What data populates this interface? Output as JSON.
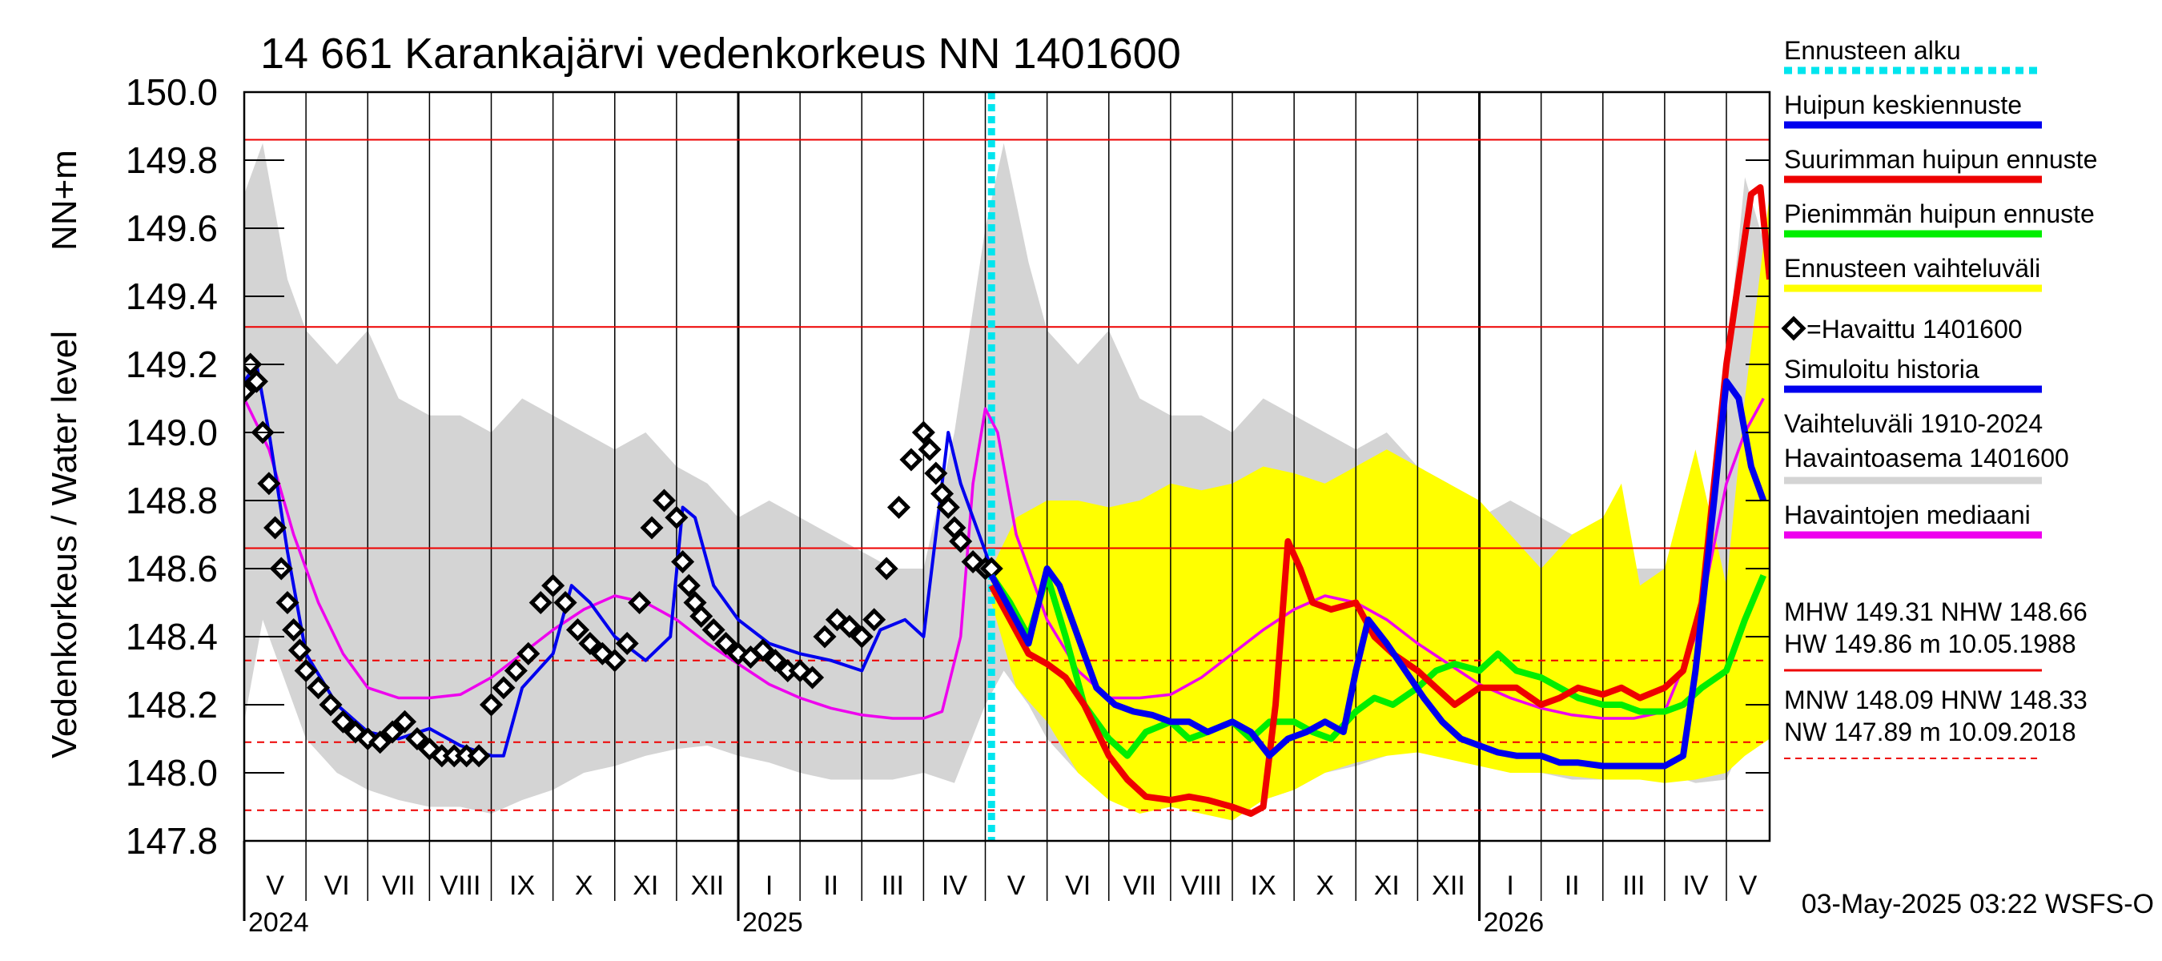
{
  "chart_data": {
    "type": "line",
    "title": "14 661 Karankajärvi vedenkorkeus NN 1401600",
    "ylabel": "Vedenkorkeus / Water level",
    "ylabel_unit": "NN+m",
    "ylim": [
      147.8,
      150.0
    ],
    "yticks": [
      "147.8",
      "148.0",
      "148.2",
      "148.4",
      "148.6",
      "148.8",
      "149.0",
      "149.2",
      "149.4",
      "149.6",
      "149.8",
      "150.0"
    ],
    "x_range": [
      0,
      24.7
    ],
    "months": [
      {
        "label": "V",
        "start": 0
      },
      {
        "label": "VI",
        "start": 1
      },
      {
        "label": "VII",
        "start": 2
      },
      {
        "label": "VIII",
        "start": 3
      },
      {
        "label": "IX",
        "start": 4
      },
      {
        "label": "X",
        "start": 5
      },
      {
        "label": "XI",
        "start": 6
      },
      {
        "label": "XII",
        "start": 7
      },
      {
        "label": "I",
        "start": 8
      },
      {
        "label": "II",
        "start": 9
      },
      {
        "label": "III",
        "start": 10
      },
      {
        "label": "IV",
        "start": 11
      },
      {
        "label": "V",
        "start": 12
      },
      {
        "label": "VI",
        "start": 13
      },
      {
        "label": "VII",
        "start": 14
      },
      {
        "label": "VIII",
        "start": 15
      },
      {
        "label": "IX",
        "start": 16
      },
      {
        "label": "X",
        "start": 17
      },
      {
        "label": "XI",
        "start": 18
      },
      {
        "label": "XII",
        "start": 19
      },
      {
        "label": "I",
        "start": 20
      },
      {
        "label": "II",
        "start": 21
      },
      {
        "label": "III",
        "start": 22
      },
      {
        "label": "IV",
        "start": 23
      },
      {
        "label": "V",
        "start": 24
      }
    ],
    "years": [
      {
        "label": "2024",
        "month_index": 0
      },
      {
        "label": "2025",
        "month_index": 8
      },
      {
        "label": "2026",
        "month_index": 20
      }
    ],
    "forecast_start": 12.1,
    "reference_lines": [
      {
        "name": "HW",
        "value": 149.86,
        "style": "solid"
      },
      {
        "name": "MHW",
        "value": 149.31,
        "style": "solid"
      },
      {
        "name": "NHW",
        "value": 148.66,
        "style": "solid"
      },
      {
        "name": "HNW",
        "value": 148.33,
        "style": "dashed"
      },
      {
        "name": "MNW",
        "value": 148.09,
        "style": "dashed"
      },
      {
        "name": "NW",
        "value": 147.89,
        "style": "dashed"
      }
    ],
    "series": [
      {
        "name": "Vaihteluväli 1910-2024 Havaintoasema 1401600",
        "kind": "band",
        "x": [
          0,
          0.3,
          0.7,
          1,
          1.5,
          2,
          2.5,
          3,
          3.5,
          4,
          4.5,
          5,
          5.5,
          6,
          6.5,
          7,
          7.5,
          8,
          8.5,
          9,
          9.5,
          10,
          10.5,
          11,
          11.5,
          12,
          12.3,
          12.7,
          13,
          13.5,
          14,
          14.5,
          15,
          15.5,
          16,
          16.5,
          17,
          17.5,
          18,
          18.5,
          19,
          19.5,
          20,
          20.5,
          21,
          21.5,
          22,
          22.5,
          23,
          23.5,
          24,
          24.3,
          24.7
        ],
        "upper": [
          149.7,
          149.85,
          149.45,
          149.3,
          149.2,
          149.3,
          149.1,
          149.05,
          149.05,
          149.0,
          149.1,
          149.05,
          149.0,
          148.95,
          149.0,
          148.9,
          148.85,
          148.75,
          148.8,
          148.75,
          148.7,
          148.65,
          148.6,
          148.6,
          149.0,
          149.6,
          149.85,
          149.5,
          149.3,
          149.2,
          149.3,
          149.1,
          149.05,
          149.05,
          149.0,
          149.1,
          149.05,
          149.0,
          148.95,
          149.0,
          148.9,
          148.85,
          148.75,
          148.8,
          148.75,
          148.7,
          148.65,
          148.6,
          148.6,
          148.45,
          149.2,
          149.75,
          149.5
        ],
        "lower": [
          148.15,
          148.45,
          148.25,
          148.1,
          148.0,
          147.95,
          147.92,
          147.9,
          147.9,
          147.88,
          147.92,
          147.95,
          148.0,
          148.02,
          148.05,
          148.07,
          148.08,
          148.05,
          148.03,
          148.0,
          147.98,
          147.98,
          147.98,
          148.0,
          147.97,
          148.2,
          148.3,
          148.2,
          148.1,
          148.0,
          147.95,
          147.92,
          147.9,
          147.9,
          147.88,
          147.92,
          147.95,
          148.0,
          148.02,
          148.05,
          148.07,
          148.08,
          148.05,
          148.03,
          148.0,
          147.98,
          147.98,
          147.98,
          148.0,
          147.97,
          147.98,
          148.1,
          148.15
        ],
        "color": "#d4d4d4"
      },
      {
        "name": "Ennusteen vaihteluväli",
        "kind": "band",
        "x": [
          12.1,
          12.5,
          13,
          13.5,
          14,
          14.5,
          15,
          15.5,
          16,
          16.5,
          17,
          17.5,
          18,
          18.5,
          19,
          19.5,
          20,
          20.5,
          21,
          21.5,
          22,
          22.3,
          22.6,
          23,
          23.5,
          24,
          24.3,
          24.7
        ],
        "upper": [
          148.6,
          148.75,
          148.8,
          148.8,
          148.78,
          148.8,
          148.85,
          148.83,
          148.85,
          148.9,
          148.88,
          148.85,
          148.9,
          148.95,
          148.9,
          148.85,
          148.8,
          148.7,
          148.6,
          148.7,
          148.75,
          148.85,
          148.55,
          148.6,
          148.95,
          148.55,
          149.1,
          149.7
        ],
        "lower": [
          148.5,
          148.25,
          148.15,
          148.0,
          147.92,
          147.88,
          147.9,
          147.88,
          147.86,
          147.92,
          147.95,
          148.0,
          148.03,
          148.05,
          148.06,
          148.04,
          148.02,
          148.0,
          148.0,
          147.99,
          147.98,
          147.98,
          147.98,
          147.97,
          147.98,
          148.0,
          148.05,
          148.1
        ],
        "color": "#ffff00"
      },
      {
        "name": "Havaintojen mediaani",
        "kind": "line",
        "x": [
          0,
          0.4,
          0.8,
          1.2,
          1.6,
          2,
          2.5,
          3,
          3.5,
          4,
          4.5,
          5,
          5.5,
          6,
          6.5,
          7,
          7.5,
          8,
          8.5,
          9,
          9.5,
          10,
          10.5,
          11,
          11.3,
          11.6,
          11.8,
          12,
          12.2,
          12.5,
          13,
          13.5,
          14,
          14.5,
          15,
          15.5,
          16,
          16.5,
          17,
          17.5,
          18,
          18.5,
          19,
          19.5,
          20,
          20.5,
          21,
          21.5,
          22,
          22.5,
          23,
          23.5,
          24,
          24.3,
          24.6
        ],
        "values": [
          149.1,
          148.95,
          148.7,
          148.5,
          148.35,
          148.25,
          148.22,
          148.22,
          148.23,
          148.28,
          148.35,
          148.42,
          148.48,
          148.52,
          148.5,
          148.45,
          148.38,
          148.32,
          148.26,
          148.22,
          148.19,
          148.17,
          148.16,
          148.16,
          148.18,
          148.4,
          148.85,
          149.07,
          149.0,
          148.7,
          148.45,
          148.3,
          148.22,
          148.22,
          148.23,
          148.28,
          148.35,
          148.42,
          148.48,
          148.52,
          148.5,
          148.45,
          148.38,
          148.32,
          148.26,
          148.22,
          148.19,
          148.17,
          148.16,
          148.16,
          148.18,
          148.4,
          148.85,
          149.0,
          149.1
        ],
        "color": "#ee00ee"
      },
      {
        "name": "Simuloitu historia",
        "kind": "line",
        "x": [
          0,
          0.2,
          0.4,
          0.7,
          1,
          1.5,
          2,
          2.5,
          3,
          3.5,
          4,
          4.2,
          4.5,
          5,
          5.3,
          5.6,
          6,
          6.5,
          6.9,
          7.1,
          7.3,
          7.6,
          8,
          8.5,
          9,
          9.5,
          10,
          10.3,
          10.7,
          11,
          11.2,
          11.4,
          11.6,
          12,
          12.1
        ],
        "values": [
          149.15,
          149.2,
          149.0,
          148.65,
          148.35,
          148.2,
          148.12,
          148.1,
          148.13,
          148.08,
          148.05,
          148.05,
          148.25,
          148.35,
          148.55,
          148.5,
          148.4,
          148.33,
          148.4,
          148.78,
          148.75,
          148.55,
          148.45,
          148.38,
          148.35,
          148.33,
          148.3,
          148.42,
          148.45,
          148.4,
          148.7,
          149.0,
          148.85,
          148.65,
          148.6
        ],
        "color": "#0000ee"
      },
      {
        "name": "Havaittu 1401600",
        "kind": "markers",
        "x": [
          0,
          0.1,
          0.2,
          0.3,
          0.4,
          0.5,
          0.6,
          0.7,
          0.8,
          0.9,
          1.0,
          1.2,
          1.4,
          1.6,
          1.8,
          2.0,
          2.2,
          2.4,
          2.6,
          2.8,
          3.0,
          3.2,
          3.4,
          3.6,
          3.8,
          4.0,
          4.2,
          4.4,
          4.6,
          4.8,
          5.0,
          5.2,
          5.4,
          5.6,
          5.8,
          6.0,
          6.2,
          6.4,
          6.6,
          6.8,
          7.0,
          7.1,
          7.2,
          7.3,
          7.4,
          7.6,
          7.8,
          8.0,
          8.2,
          8.4,
          8.6,
          8.8,
          9.0,
          9.2,
          9.4,
          9.6,
          9.8,
          10.0,
          10.2,
          10.4,
          10.6,
          10.8,
          11.0,
          11.1,
          11.2,
          11.3,
          11.4,
          11.5,
          11.6,
          11.8,
          12.0,
          12.1
        ],
        "values": [
          149.12,
          149.2,
          149.15,
          149.0,
          148.85,
          148.72,
          148.6,
          148.5,
          148.42,
          148.36,
          148.3,
          148.25,
          148.2,
          148.15,
          148.12,
          148.1,
          148.09,
          148.12,
          148.15,
          148.1,
          148.07,
          148.05,
          148.05,
          148.05,
          148.05,
          148.2,
          148.25,
          148.3,
          148.35,
          148.5,
          148.55,
          148.5,
          148.42,
          148.38,
          148.35,
          148.33,
          148.38,
          148.5,
          148.72,
          148.8,
          148.75,
          148.62,
          148.55,
          148.5,
          148.46,
          148.42,
          148.38,
          148.35,
          148.34,
          148.36,
          148.33,
          148.3,
          148.3,
          148.28,
          148.4,
          148.45,
          148.43,
          148.4,
          148.45,
          148.6,
          148.78,
          148.92,
          149.0,
          148.95,
          148.88,
          148.82,
          148.78,
          148.72,
          148.68,
          148.62,
          148.6,
          148.6
        ],
        "color": "#000000"
      },
      {
        "name": "Pienimmän huipun ennuste",
        "kind": "line",
        "x": [
          12.1,
          12.4,
          12.7,
          13.0,
          13.3,
          13.6,
          14.0,
          14.3,
          14.6,
          15.0,
          15.3,
          15.6,
          16.0,
          16.3,
          16.6,
          17.0,
          17.3,
          17.6,
          18.0,
          18.3,
          18.6,
          19.0,
          19.3,
          19.6,
          20.0,
          20.3,
          20.6,
          21.0,
          21.3,
          21.6,
          22.0,
          22.3,
          22.6,
          23.0,
          23.3,
          23.6,
          24.0,
          24.3,
          24.6
        ],
        "values": [
          148.58,
          148.5,
          148.4,
          148.58,
          148.4,
          148.2,
          148.1,
          148.05,
          148.12,
          148.15,
          148.1,
          148.12,
          148.15,
          148.1,
          148.15,
          148.15,
          148.12,
          148.1,
          148.18,
          148.22,
          148.2,
          148.25,
          148.3,
          148.32,
          148.3,
          148.35,
          148.3,
          148.28,
          148.25,
          148.22,
          148.2,
          148.2,
          148.18,
          148.18,
          148.2,
          148.25,
          148.3,
          148.45,
          148.58
        ],
        "color": "#00ee00"
      },
      {
        "name": "Suurimman huipun ennuste",
        "kind": "line",
        "x": [
          12.1,
          12.4,
          12.7,
          13.0,
          13.3,
          13.6,
          14.0,
          14.3,
          14.6,
          15.0,
          15.3,
          15.6,
          16.0,
          16.3,
          16.5,
          16.7,
          16.9,
          17.1,
          17.3,
          17.6,
          18.0,
          18.3,
          18.6,
          19.0,
          19.3,
          19.6,
          20.0,
          20.3,
          20.6,
          21.0,
          21.3,
          21.6,
          22.0,
          22.3,
          22.6,
          23.0,
          23.3,
          23.6,
          24.0,
          24.2,
          24.4,
          24.55,
          24.7
        ],
        "values": [
          148.55,
          148.45,
          148.35,
          148.32,
          148.28,
          148.2,
          148.05,
          147.98,
          147.93,
          147.92,
          147.93,
          147.92,
          147.9,
          147.88,
          147.9,
          148.2,
          148.68,
          148.6,
          148.5,
          148.48,
          148.5,
          148.4,
          148.35,
          148.3,
          148.25,
          148.2,
          148.25,
          148.25,
          148.25,
          148.2,
          148.22,
          148.25,
          148.23,
          148.25,
          148.22,
          148.25,
          148.3,
          148.5,
          149.2,
          149.45,
          149.7,
          149.72,
          149.45
        ],
        "color": "#ee0000"
      },
      {
        "name": "Huipun keskiennuste",
        "kind": "line",
        "x": [
          12.1,
          12.4,
          12.7,
          13.0,
          13.2,
          13.5,
          13.8,
          14.1,
          14.4,
          14.7,
          15.0,
          15.3,
          15.6,
          16.0,
          16.3,
          16.6,
          16.9,
          17.2,
          17.5,
          17.8,
          18.0,
          18.2,
          18.5,
          18.8,
          19.1,
          19.4,
          19.7,
          20.0,
          20.3,
          20.6,
          21.0,
          21.3,
          21.6,
          22.0,
          22.3,
          22.6,
          23.0,
          23.3,
          23.5,
          23.8,
          24.0,
          24.2,
          24.4,
          24.6
        ],
        "values": [
          148.58,
          148.48,
          148.38,
          148.6,
          148.55,
          148.4,
          148.25,
          148.2,
          148.18,
          148.17,
          148.15,
          148.15,
          148.12,
          148.15,
          148.12,
          148.05,
          148.1,
          148.12,
          148.15,
          148.12,
          148.3,
          148.45,
          148.38,
          148.3,
          148.22,
          148.15,
          148.1,
          148.08,
          148.06,
          148.05,
          148.05,
          148.03,
          148.03,
          148.02,
          148.02,
          148.02,
          148.02,
          148.05,
          148.3,
          148.8,
          149.15,
          149.1,
          148.9,
          148.8
        ],
        "color": "#0000ee"
      }
    ],
    "legend": [
      {
        "label": "Ennusteen alku",
        "swatch": "dotted",
        "color": "#00e5ee"
      },
      {
        "label": "Huipun keskiennuste",
        "swatch": "line",
        "color": "#0000ee"
      },
      {
        "label": "Suurimman huipun ennuste",
        "swatch": "line",
        "color": "#ee0000"
      },
      {
        "label": "Pienimmän huipun ennuste",
        "swatch": "line",
        "color": "#00ee00"
      },
      {
        "label": "Ennusteen vaihteluväli",
        "swatch": "line",
        "color": "#ffff00"
      },
      {
        "label": "=Havaittu 1401600",
        "swatch": "diamond",
        "color": "#000000"
      },
      {
        "label": "Simuloitu historia",
        "swatch": "line",
        "color": "#0000ee"
      },
      {
        "label": "Vaihteluväli 1910-2024",
        "label2": " Havaintoasema 1401600",
        "swatch": "line",
        "color": "#d4d4d4"
      },
      {
        "label": "Havaintojen mediaani",
        "swatch": "line",
        "color": "#ee00ee"
      }
    ],
    "stats": [
      {
        "line1": "MHW 149.31 NHW 148.66",
        "line2": "HW 149.86 m 10.05.1988",
        "swatch": "solid",
        "color": "#ee0000"
      },
      {
        "line1": "MNW 148.09 HNW 148.33",
        "line2": "NW 147.89 m 10.09.2018",
        "swatch": "dashed",
        "color": "#ee0000"
      }
    ],
    "footer": "03-May-2025 03:22 WSFS-O"
  }
}
